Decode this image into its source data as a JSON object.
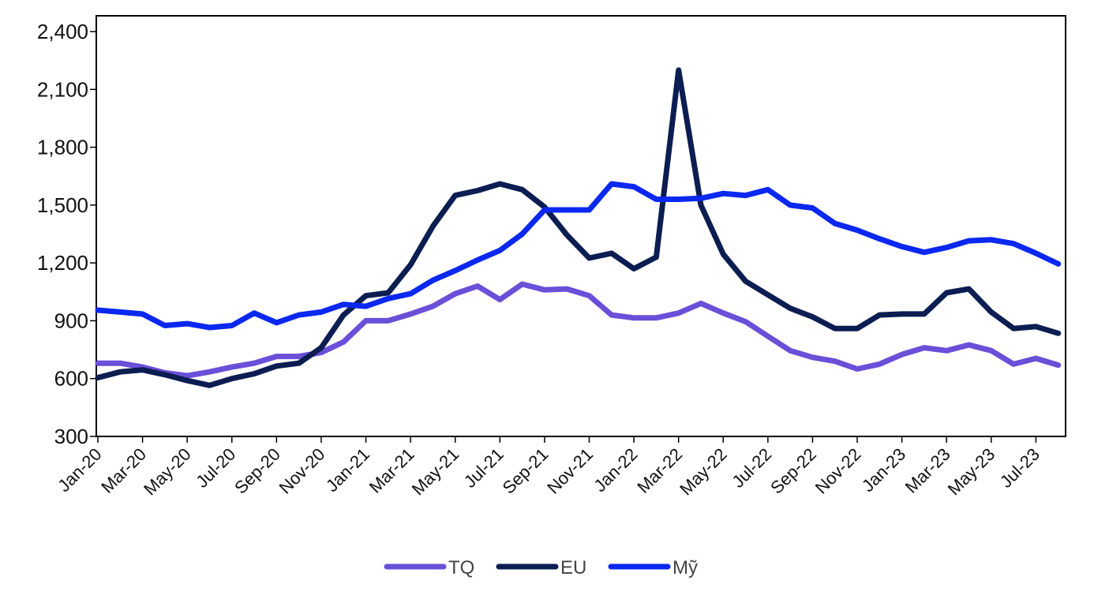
{
  "chart_data": {
    "type": "line",
    "title": "",
    "xlabel": "",
    "ylabel": "",
    "ylim": [
      300,
      2400
    ],
    "yticks": [
      300,
      600,
      900,
      1200,
      1500,
      1800,
      2100,
      2400
    ],
    "ytick_labels": [
      "300",
      "600",
      "900",
      "1,200",
      "1,500",
      "1,800",
      "2,100",
      "2,400"
    ],
    "x": [
      "Jan-20",
      "Feb-20",
      "Mar-20",
      "Apr-20",
      "May-20",
      "Jun-20",
      "Jul-20",
      "Aug-20",
      "Sep-20",
      "Oct-20",
      "Nov-20",
      "Dec-20",
      "Jan-21",
      "Feb-21",
      "Mar-21",
      "Apr-21",
      "May-21",
      "Jun-21",
      "Jul-21",
      "Aug-21",
      "Sep-21",
      "Oct-21",
      "Nov-21",
      "Dec-21",
      "Jan-22",
      "Feb-22",
      "Mar-22",
      "Apr-22",
      "May-22",
      "Jun-22",
      "Jul-22",
      "Aug-22",
      "Sep-22",
      "Oct-22",
      "Nov-22",
      "Dec-22",
      "Jan-23",
      "Feb-23",
      "Mar-23",
      "Apr-23",
      "May-23",
      "Jun-23",
      "Jul-23",
      "Aug-23"
    ],
    "xtick_labels": [
      "Jan-20",
      "Mar-20",
      "May-20",
      "Jul-20",
      "Sep-20",
      "Nov-20",
      "Jan-21",
      "Mar-21",
      "May-21",
      "Jul-21",
      "Sep-21",
      "Nov-21",
      "Jan-22",
      "Mar-22",
      "May-22",
      "Jul-22",
      "Sep-22",
      "Nov-22",
      "Jan-23",
      "Mar-23",
      "May-23",
      "Jul-23"
    ],
    "legend_position": "bottom",
    "grid": false,
    "series": [
      {
        "name": "TQ",
        "color": "#6A4FD8",
        "values": [
          680,
          680,
          660,
          630,
          615,
          635,
          660,
          680,
          715,
          715,
          735,
          790,
          900,
          900,
          935,
          975,
          1040,
          1080,
          1010,
          1090,
          1060,
          1065,
          1030,
          930,
          915,
          915,
          940,
          990,
          940,
          895,
          820,
          745,
          710,
          690,
          650,
          675,
          725,
          760,
          745,
          775,
          745,
          675,
          705,
          670
        ]
      },
      {
        "name": "EU",
        "color": "#0B1D51",
        "values": [
          605,
          635,
          645,
          620,
          590,
          565,
          600,
          625,
          665,
          680,
          760,
          930,
          1030,
          1045,
          1190,
          1390,
          1550,
          1575,
          1610,
          1580,
          1490,
          1345,
          1225,
          1250,
          1170,
          1230,
          2200,
          1500,
          1245,
          1105,
          1035,
          965,
          920,
          860,
          860,
          930,
          935,
          935,
          1045,
          1065,
          945,
          860,
          870,
          835
        ]
      },
      {
        "name": "Mỹ",
        "color": "#0A28F0",
        "values": [
          955,
          945,
          935,
          875,
          885,
          865,
          875,
          940,
          890,
          930,
          945,
          985,
          975,
          1015,
          1040,
          1110,
          1160,
          1215,
          1265,
          1350,
          1475,
          1475,
          1475,
          1610,
          1595,
          1530,
          1530,
          1535,
          1560,
          1550,
          1580,
          1500,
          1485,
          1405,
          1370,
          1325,
          1285,
          1255,
          1280,
          1315,
          1320,
          1300,
          1250,
          1195
        ]
      }
    ]
  }
}
